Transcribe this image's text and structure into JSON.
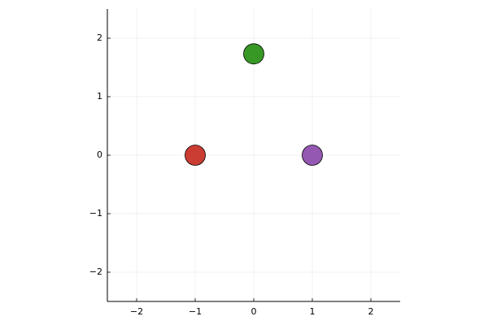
{
  "chart_data": {
    "type": "scatter",
    "x": [
      -1,
      0,
      1
    ],
    "values": [
      0,
      1.732,
      0
    ],
    "colors": [
      "#cb3c33",
      "#389826",
      "#9558b2"
    ],
    "xlim": [
      -2.5,
      2.5
    ],
    "ylim": [
      -2.5,
      2.5
    ],
    "xticks": [
      {
        "value": -2,
        "label": "−2"
      },
      {
        "value": -1,
        "label": "−1"
      },
      0,
      1,
      2
    ],
    "yticks": [
      {
        "value": -2,
        "label": "−2"
      },
      {
        "value": -1,
        "label": "−1"
      },
      0,
      1,
      2
    ],
    "grid": true
  }
}
